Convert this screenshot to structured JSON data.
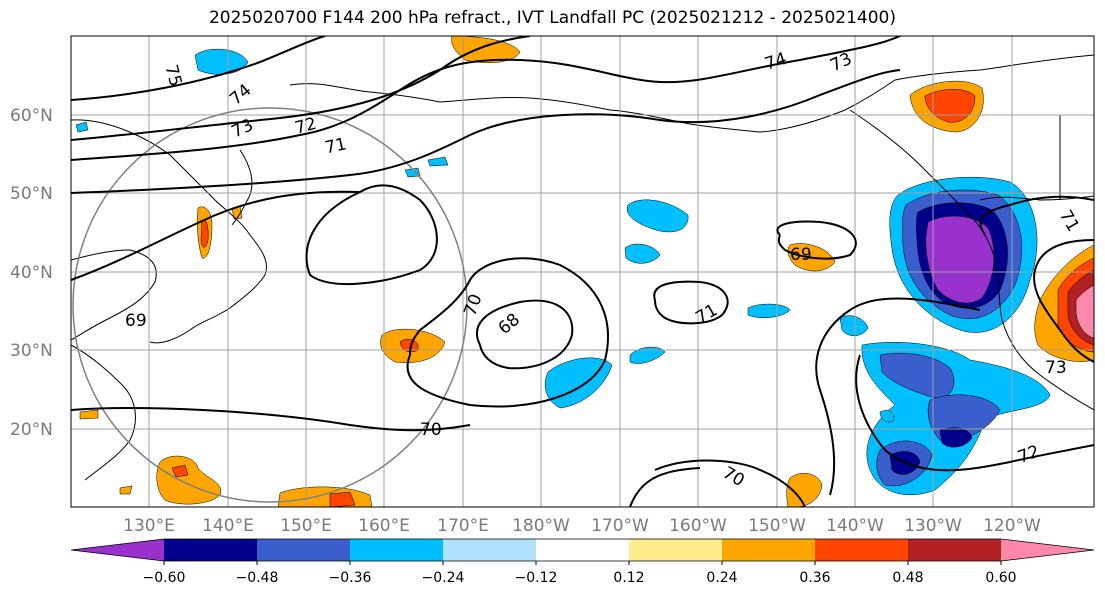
{
  "title": "2025020700 F144 200 hPa refract., IVT Landfall PC (2025021212 - 2025021400)",
  "lat_labels": [
    "60°N",
    "50°N",
    "40°N",
    "30°N",
    "20°N"
  ],
  "lon_labels": [
    "130°E",
    "140°E",
    "150°E",
    "160°E",
    "170°E",
    "180°W",
    "170°W",
    "160°W",
    "150°W",
    "140°W",
    "130°W",
    "120°W"
  ],
  "contour_labels": [
    "75",
    "74",
    "73",
    "72",
    "71",
    "69",
    "68",
    "70",
    "71",
    "69",
    "74",
    "73",
    "71",
    "73",
    "72",
    "70",
    "70"
  ],
  "colorbar": {
    "colors": [
      "#9932cc",
      "#00008b",
      "#3a5fcd",
      "#00bfff",
      "#b0e2ff",
      "#ffffff",
      "#ffec8b",
      "#ffa500",
      "#ff4500",
      "#b22222",
      "#ff88aa"
    ],
    "ticks": [
      "−0.60",
      "−0.48",
      "−0.36",
      "−0.24",
      "−0.12",
      "0.12",
      "0.24",
      "0.36",
      "0.48",
      "0.60"
    ]
  }
}
